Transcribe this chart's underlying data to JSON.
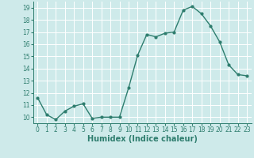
{
  "x": [
    0,
    1,
    2,
    3,
    4,
    5,
    6,
    7,
    8,
    9,
    10,
    11,
    12,
    13,
    14,
    15,
    16,
    17,
    18,
    19,
    20,
    21,
    22,
    23
  ],
  "y": [
    11.6,
    10.2,
    9.8,
    10.5,
    10.9,
    11.1,
    9.9,
    10.0,
    10.0,
    10.0,
    12.4,
    15.1,
    16.8,
    16.6,
    16.9,
    17.0,
    18.8,
    19.1,
    18.5,
    17.5,
    16.2,
    14.3,
    13.5,
    13.4
  ],
  "line_color": "#2e7d6e",
  "marker": "o",
  "markersize": 2.0,
  "linewidth": 1.0,
  "xlabel": "Humidex (Indice chaleur)",
  "xlim": [
    -0.5,
    23.5
  ],
  "ylim": [
    9.5,
    19.5
  ],
  "yticks": [
    10,
    11,
    12,
    13,
    14,
    15,
    16,
    17,
    18,
    19
  ],
  "xticks": [
    0,
    1,
    2,
    3,
    4,
    5,
    6,
    7,
    8,
    9,
    10,
    11,
    12,
    13,
    14,
    15,
    16,
    17,
    18,
    19,
    20,
    21,
    22,
    23
  ],
  "background_color": "#ceeaea",
  "grid_color": "#ffffff",
  "tick_color": "#2e7d6e",
  "spine_color": "#2e7d6e",
  "tick_fontsize": 5.5,
  "xlabel_fontsize": 7.0
}
